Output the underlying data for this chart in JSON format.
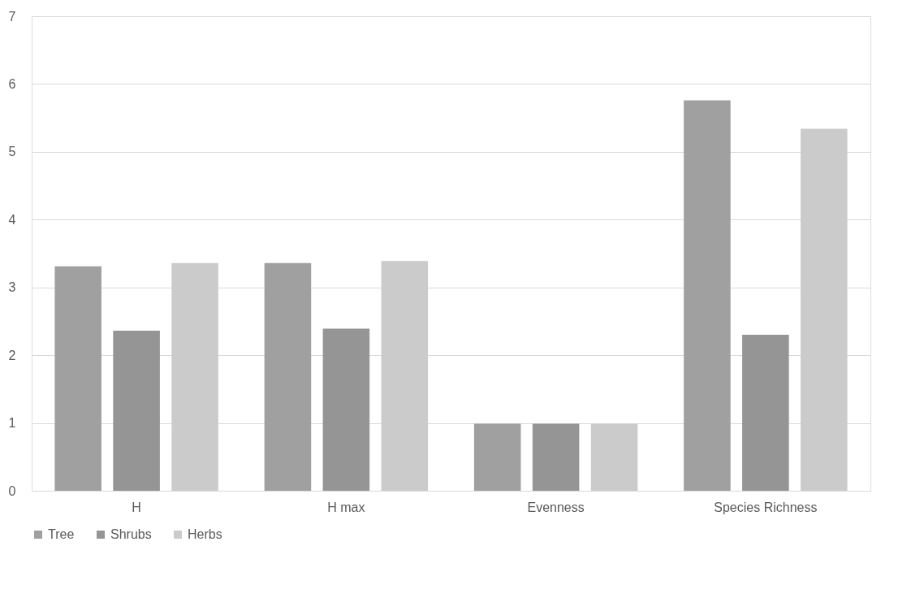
{
  "chart_data": {
    "type": "bar",
    "categories": [
      "H",
      "H max",
      "Evenness",
      "Species Richness"
    ],
    "series": [
      {
        "name": "Tree",
        "color": "#a0a0a0",
        "values": [
          3.31,
          3.36,
          0.99,
          5.76
        ]
      },
      {
        "name": "Shrubs",
        "color": "#959595",
        "values": [
          2.36,
          2.39,
          0.99,
          2.3
        ]
      },
      {
        "name": "Herbs",
        "color": "#cbcbcb",
        "values": [
          3.36,
          3.39,
          0.99,
          5.34
        ]
      }
    ],
    "ylim": [
      0,
      7
    ],
    "yticks": [
      0,
      1,
      2,
      3,
      4,
      5,
      6,
      7
    ],
    "grid": "y",
    "legend": "bottom"
  }
}
